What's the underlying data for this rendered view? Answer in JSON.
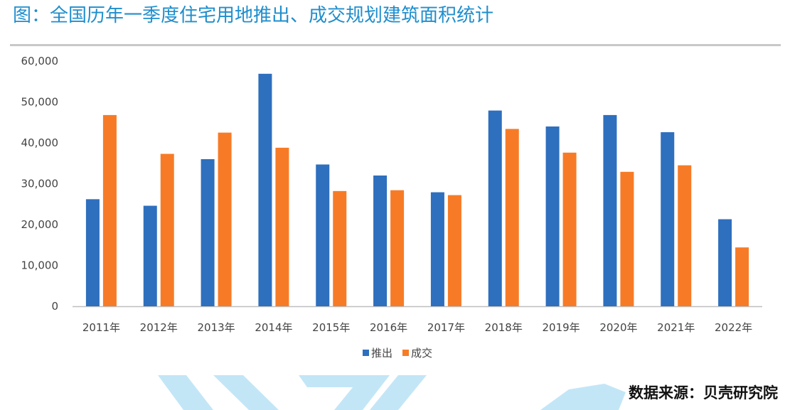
{
  "title": "图：全国历年一季度住宅用地推出、成交规划建筑面积统计",
  "source": "数据来源：贝壳研究院",
  "chart_data": {
    "type": "bar",
    "title": "图：全国历年一季度住宅用地推出、成交规划建筑面积统计",
    "xlabel": "",
    "ylabel": "",
    "ylim": [
      0,
      60000
    ],
    "yticks": [
      0,
      10000,
      20000,
      30000,
      40000,
      50000,
      60000
    ],
    "ytick_labels": [
      "0",
      "10,000",
      "20,000",
      "30,000",
      "40,000",
      "50,000",
      "60,000"
    ],
    "grid": false,
    "legend_position": "bottom-center",
    "categories": [
      "2011年",
      "2012年",
      "2013年",
      "2014年",
      "2015年",
      "2016年",
      "2017年",
      "2018年",
      "2019年",
      "2020年",
      "2021年",
      "2022年"
    ],
    "series": [
      {
        "name": "推出",
        "color": "#2e6fbe",
        "values": [
          26200,
          24600,
          36000,
          56900,
          34700,
          32000,
          27900,
          47900,
          44000,
          46800,
          42600,
          21300
        ]
      },
      {
        "name": "成交",
        "color": "#f77b26",
        "values": [
          46800,
          37300,
          42500,
          38800,
          28200,
          28400,
          27200,
          43400,
          37600,
          32900,
          34500,
          14400
        ]
      }
    ]
  }
}
